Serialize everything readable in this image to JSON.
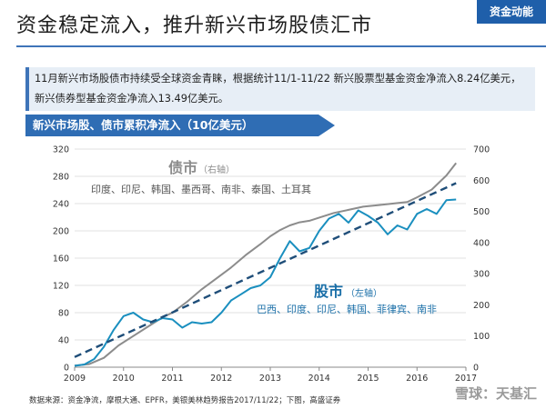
{
  "header": {
    "title": "资金稳定流入，推升新兴市场股债汇市",
    "badge": "资金动能"
  },
  "summary": "11月新兴市场股债市持续受全球资金青睐，根据统计11/1-11/22 新兴股票型基金资金净流入8.24亿美元，新兴债券型基金资金净流入13.49亿美元。",
  "chart_header": "新兴市场股、债市累积净流入（10亿美元）",
  "source": "数据来源：资金净流，摩根大通、EPFR，美银美林趋势报告2017/11/22；下图，高盛证券",
  "watermark": "雪球：天基汇",
  "colors": {
    "bond": "#8c8c8c",
    "equity": "#1a8fbf",
    "trend": "#1f4e79",
    "accent": "#1f5faa"
  },
  "chart_data": {
    "type": "line",
    "x_ticks": [
      "2009",
      "2010",
      "2011",
      "2012",
      "2013",
      "2014",
      "2015",
      "2016",
      "2017"
    ],
    "x_range": [
      2009,
      2017
    ],
    "left_axis": {
      "range": [
        0,
        320
      ],
      "ticks": [
        0,
        40,
        80,
        120,
        160,
        200,
        240,
        280,
        320
      ]
    },
    "right_axis": {
      "range": [
        0,
        700
      ],
      "ticks": [
        0,
        100,
        200,
        300,
        400,
        500,
        600,
        700
      ]
    },
    "bond_label": {
      "title": "债市",
      "axis_note": "（右轴）",
      "countries": "印度、印尼、韩国、墨西哥、南非、泰国、土耳其"
    },
    "equity_label": {
      "title": "股市",
      "axis_note": "（左轴）",
      "countries": "巴西、印度、印尼、韩国、菲律宾、南非"
    },
    "series": [
      {
        "name": "债市",
        "axis": "right",
        "x": [
          2009.0,
          2009.3,
          2009.6,
          2009.9,
          2010.2,
          2010.5,
          2010.8,
          2011.0,
          2011.3,
          2011.6,
          2011.9,
          2012.2,
          2012.5,
          2012.8,
          2013.0,
          2013.2,
          2013.4,
          2013.6,
          2013.8,
          2014.0,
          2014.3,
          2014.6,
          2014.9,
          2015.2,
          2015.5,
          2015.8,
          2016.0,
          2016.3,
          2016.6,
          2016.8
        ],
        "y": [
          5,
          10,
          30,
          70,
          100,
          130,
          160,
          175,
          210,
          250,
          285,
          320,
          360,
          395,
          420,
          440,
          455,
          465,
          470,
          480,
          495,
          505,
          515,
          520,
          525,
          530,
          545,
          570,
          615,
          655
        ]
      },
      {
        "name": "股市",
        "axis": "left",
        "x": [
          2009.0,
          2009.2,
          2009.4,
          2009.6,
          2009.8,
          2010.0,
          2010.2,
          2010.4,
          2010.6,
          2010.8,
          2011.0,
          2011.2,
          2011.4,
          2011.6,
          2011.8,
          2012.0,
          2012.2,
          2012.4,
          2012.6,
          2012.8,
          2013.0,
          2013.2,
          2013.4,
          2013.6,
          2013.8,
          2014.0,
          2014.2,
          2014.4,
          2014.6,
          2014.8,
          2015.0,
          2015.2,
          2015.4,
          2015.6,
          2015.8,
          2016.0,
          2016.2,
          2016.4,
          2016.6,
          2016.8
        ],
        "y": [
          2,
          4,
          12,
          30,
          55,
          75,
          80,
          70,
          66,
          72,
          70,
          58,
          66,
          64,
          66,
          80,
          98,
          107,
          116,
          120,
          132,
          160,
          185,
          170,
          175,
          200,
          218,
          225,
          212,
          230,
          222,
          212,
          195,
          208,
          202,
          225,
          232,
          225,
          245,
          246
        ]
      },
      {
        "name": "",
        "axis": "left",
        "style": "dashed-trend",
        "x": [
          2009.0,
          2016.8
        ],
        "y": [
          15,
          270
        ]
      }
    ]
  }
}
